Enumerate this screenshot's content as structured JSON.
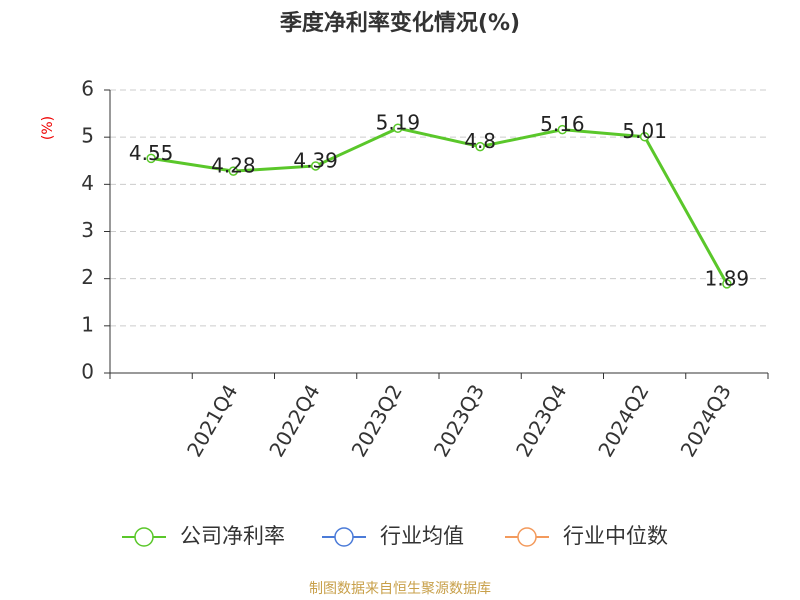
{
  "chart_data": {
    "type": "line",
    "title": "季度净利率变化情况(%)",
    "y_label": "(%)",
    "categories": [
      null,
      "2021Q4",
      "2022Q4",
      "2023Q2",
      "2023Q3",
      "2023Q4",
      "2024Q2",
      "2024Q3"
    ],
    "series": [
      {
        "name": "公司净利率",
        "color": "#5ac72a",
        "values": [
          4.55,
          4.28,
          4.39,
          5.19,
          4.8,
          5.16,
          5.01,
          1.89
        ]
      },
      {
        "name": "行业均值",
        "color": "#4b7bd8",
        "values": [
          null,
          null,
          null,
          null,
          null,
          null,
          null,
          null
        ]
      },
      {
        "name": "行业中位数",
        "color": "#f39a5c",
        "values": [
          null,
          null,
          null,
          null,
          null,
          null,
          null,
          null
        ]
      }
    ],
    "ylim": [
      0,
      6
    ],
    "yticks": [
      0,
      1,
      2,
      3,
      4,
      5,
      6
    ],
    "grid": true,
    "legend": "bottom",
    "source": "制图数据来自恒生聚源数据库"
  }
}
